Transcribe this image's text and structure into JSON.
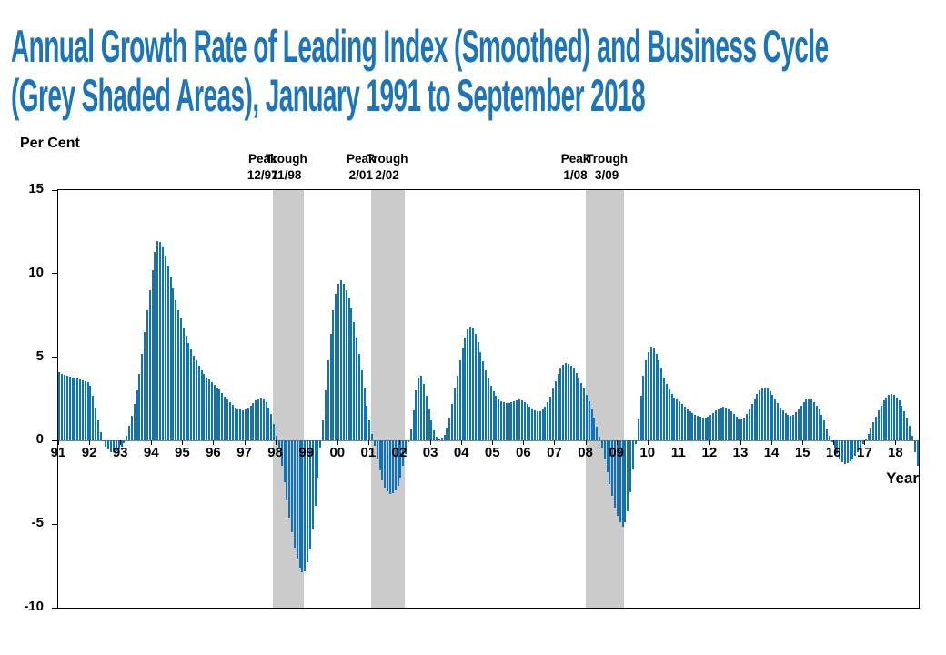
{
  "title": {
    "line1": "Annual Growth Rate of Leading Index (Smoothed) and Business Cycle",
    "line2": "(Grey Shaded Areas), January 1991 to September 2018"
  },
  "labels": {
    "y_axis": "Per Cent",
    "x_axis": "Year"
  },
  "colors": {
    "title": "#1B75BC",
    "bar": "#0E73B8",
    "shade": "#CBCBCB",
    "zero_line": "#808080",
    "axis_text": "#000000"
  },
  "chart_data": {
    "type": "bar",
    "title": "Annual Growth Rate of Leading Index (Smoothed) and Business Cycle (Grey Shaded Areas), January 1991 to September 2018",
    "ylabel": "Per Cent",
    "xlabel": "Year",
    "ylim": [
      -10,
      15
    ],
    "yticks": [
      15,
      10,
      5,
      0,
      -5,
      -10
    ],
    "ytick_labels": [
      "15",
      "10",
      "5",
      "0",
      "-5",
      "-10"
    ],
    "x_ticklabels": [
      "91",
      "92",
      "93",
      "94",
      "95",
      "96",
      "97",
      "98",
      "99",
      "00",
      "01",
      "02",
      "03",
      "04",
      "05",
      "06",
      "07",
      "08",
      "09",
      "10",
      "11",
      "12",
      "13",
      "14",
      "15",
      "16",
      "17",
      "18"
    ],
    "start_month": "1991-01",
    "end_month": "2018-09",
    "grid": false,
    "legend": "none",
    "recessions": [
      {
        "peak_label": "Peak",
        "peak_date": "12/97",
        "trough_label": "Trough",
        "trough_date": "11/98",
        "start_index": 83,
        "end_index": 94
      },
      {
        "peak_label": "Peak",
        "peak_date": "2/01",
        "trough_label": "Trough",
        "trough_date": "2/02",
        "start_index": 121,
        "end_index": 133
      },
      {
        "peak_label": "Peak",
        "peak_date": "1/08",
        "trough_label": "Trough",
        "trough_date": "3/09",
        "start_index": 204,
        "end_index": 218
      }
    ],
    "values": [
      4.1,
      4.0,
      3.95,
      3.9,
      3.85,
      3.8,
      3.75,
      3.7,
      3.65,
      3.6,
      3.55,
      3.5,
      3.3,
      2.7,
      2.0,
      1.2,
      0.5,
      -0.05,
      -0.35,
      -0.55,
      -0.67,
      -0.7,
      -0.65,
      -0.5,
      -0.35,
      -0.15,
      0.3,
      0.9,
      1.5,
      2.2,
      3.0,
      4.0,
      5.2,
      6.5,
      7.8,
      9.0,
      10.2,
      11.3,
      11.95,
      11.9,
      11.6,
      11.1,
      10.5,
      9.8,
      9.1,
      8.4,
      7.8,
      7.3,
      6.8,
      6.3,
      5.85,
      5.45,
      5.1,
      4.8,
      4.5,
      4.2,
      4.0,
      3.8,
      3.65,
      3.5,
      3.35,
      3.2,
      3.05,
      2.85,
      2.65,
      2.5,
      2.3,
      2.15,
      2.0,
      1.9,
      1.85,
      1.8,
      1.85,
      1.95,
      2.1,
      2.25,
      2.4,
      2.5,
      2.55,
      2.5,
      2.3,
      2.0,
      1.6,
      1.0,
      0.3,
      -0.5,
      -1.5,
      -2.5,
      -3.6,
      -4.6,
      -5.5,
      -6.4,
      -7.1,
      -7.6,
      -7.9,
      -7.8,
      -7.3,
      -6.5,
      -5.3,
      -3.9,
      -2.2,
      -0.4,
      1.2,
      3.0,
      4.8,
      6.4,
      7.8,
      8.8,
      9.4,
      9.6,
      9.4,
      9.0,
      8.5,
      7.9,
      7.1,
      6.2,
      5.2,
      4.2,
      3.1,
      2.1,
      1.2,
      0.4,
      -0.3,
      -1.1,
      -1.8,
      -2.4,
      -2.8,
      -3.05,
      -3.2,
      -3.15,
      -3.0,
      -2.7,
      -2.2,
      -1.5,
      -0.8,
      -0.1,
      0.7,
      1.8,
      3.0,
      3.8,
      3.9,
      3.4,
      2.7,
      1.9,
      1.2,
      0.6,
      0.25,
      0.1,
      0.15,
      0.35,
      0.8,
      1.4,
      2.2,
      3.1,
      3.9,
      4.8,
      5.6,
      6.2,
      6.65,
      6.85,
      6.75,
      6.4,
      5.9,
      5.3,
      4.75,
      4.2,
      3.7,
      3.3,
      2.95,
      2.7,
      2.5,
      2.35,
      2.3,
      2.25,
      2.25,
      2.3,
      2.35,
      2.4,
      2.45,
      2.4,
      2.3,
      2.2,
      2.05,
      1.9,
      1.8,
      1.75,
      1.75,
      1.85,
      2.05,
      2.3,
      2.65,
      3.1,
      3.55,
      4.0,
      4.35,
      4.55,
      4.65,
      4.6,
      4.5,
      4.3,
      4.05,
      3.75,
      3.45,
      3.1,
      2.75,
      2.35,
      1.9,
      1.4,
      0.85,
      0.25,
      -0.4,
      -1.1,
      -1.9,
      -2.6,
      -3.3,
      -4.0,
      -4.5,
      -4.9,
      -5.15,
      -4.9,
      -4.2,
      -3.1,
      -1.7,
      -0.2,
      1.3,
      2.7,
      3.9,
      4.8,
      5.3,
      5.65,
      5.55,
      5.2,
      4.8,
      4.3,
      3.8,
      3.4,
      3.05,
      2.8,
      2.6,
      2.45,
      2.35,
      2.2,
      2.05,
      1.9,
      1.75,
      1.65,
      1.55,
      1.5,
      1.45,
      1.4,
      1.4,
      1.45,
      1.55,
      1.65,
      1.8,
      1.9,
      2.0,
      2.05,
      2.0,
      1.9,
      1.75,
      1.6,
      1.45,
      1.3,
      1.25,
      1.4,
      1.6,
      1.9,
      2.2,
      2.5,
      2.8,
      3.0,
      3.15,
      3.2,
      3.1,
      2.95,
      2.75,
      2.5,
      2.25,
      2.0,
      1.8,
      1.65,
      1.55,
      1.5,
      1.55,
      1.7,
      1.9,
      2.1,
      2.3,
      2.45,
      2.5,
      2.45,
      2.3,
      2.1,
      1.85,
      1.55,
      1.2,
      0.7,
      0.3,
      -0.1,
      -0.45,
      -0.8,
      -1.1,
      -1.3,
      -1.4,
      -1.35,
      -1.25,
      -1.1,
      -0.9,
      -0.7,
      -0.45,
      -0.2,
      0.1,
      0.4,
      0.75,
      1.1,
      1.45,
      1.8,
      2.1,
      2.4,
      2.6,
      2.75,
      2.8,
      2.75,
      2.6,
      2.4,
      2.1,
      1.75,
      1.35,
      0.9,
      0.3,
      -0.7,
      -1.5
    ]
  }
}
